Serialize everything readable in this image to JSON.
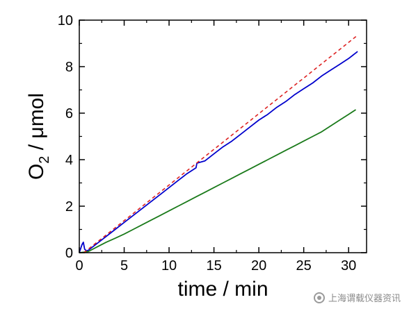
{
  "chart_data": {
    "type": "line",
    "xlabel": "time / min",
    "ylabel_main": "O",
    "ylabel_sub": "2",
    "ylabel_unit": " / μmol",
    "xlim": [
      0,
      32
    ],
    "ylim": [
      0,
      10
    ],
    "x_ticks": [
      0,
      5,
      10,
      15,
      20,
      25,
      30
    ],
    "y_ticks": [
      0,
      2,
      4,
      6,
      8,
      10
    ],
    "grid": false,
    "series": [
      {
        "color": "#0000cc",
        "style": "solid",
        "x": [
          0,
          0.3,
          0.45,
          0.6,
          0.8,
          1,
          2,
          3,
          4,
          5,
          6,
          7,
          8,
          9,
          10,
          11,
          12,
          13,
          13.1,
          14,
          15,
          16,
          17,
          18,
          19,
          20,
          21,
          22,
          23,
          24,
          25,
          26,
          27,
          28,
          29,
          30,
          31
        ],
        "y": [
          0.0,
          0.35,
          0.45,
          0.15,
          0.08,
          0.1,
          0.4,
          0.7,
          1.0,
          1.3,
          1.6,
          1.9,
          2.2,
          2.5,
          2.8,
          3.1,
          3.4,
          3.65,
          3.85,
          3.95,
          4.25,
          4.55,
          4.8,
          5.1,
          5.4,
          5.7,
          5.95,
          6.25,
          6.5,
          6.8,
          7.05,
          7.3,
          7.6,
          7.85,
          8.1,
          8.35,
          8.65
        ]
      },
      {
        "color": "#1a7a1a",
        "style": "solid",
        "x": [
          0,
          0.5,
          1,
          2,
          3,
          4,
          5,
          6,
          7,
          8,
          9,
          10,
          11,
          12,
          13,
          14,
          15,
          16,
          17,
          18,
          19,
          20,
          21,
          22,
          23,
          24,
          25,
          26,
          27,
          28,
          29,
          30,
          30.8
        ],
        "y": [
          0.0,
          0.02,
          0.05,
          0.25,
          0.45,
          0.62,
          0.8,
          1.0,
          1.2,
          1.4,
          1.6,
          1.8,
          2.0,
          2.2,
          2.4,
          2.6,
          2.8,
          3.0,
          3.2,
          3.4,
          3.6,
          3.8,
          4.0,
          4.2,
          4.4,
          4.6,
          4.8,
          5.0,
          5.2,
          5.45,
          5.7,
          5.95,
          6.15
        ]
      },
      {
        "color": "#dd2222",
        "style": "dashed",
        "x": [
          0.5,
          31
        ],
        "y": [
          0.0,
          9.35
        ]
      }
    ]
  },
  "watermark": {
    "text": "上海谓载仪器资讯",
    "icon": "wechat-icon"
  }
}
